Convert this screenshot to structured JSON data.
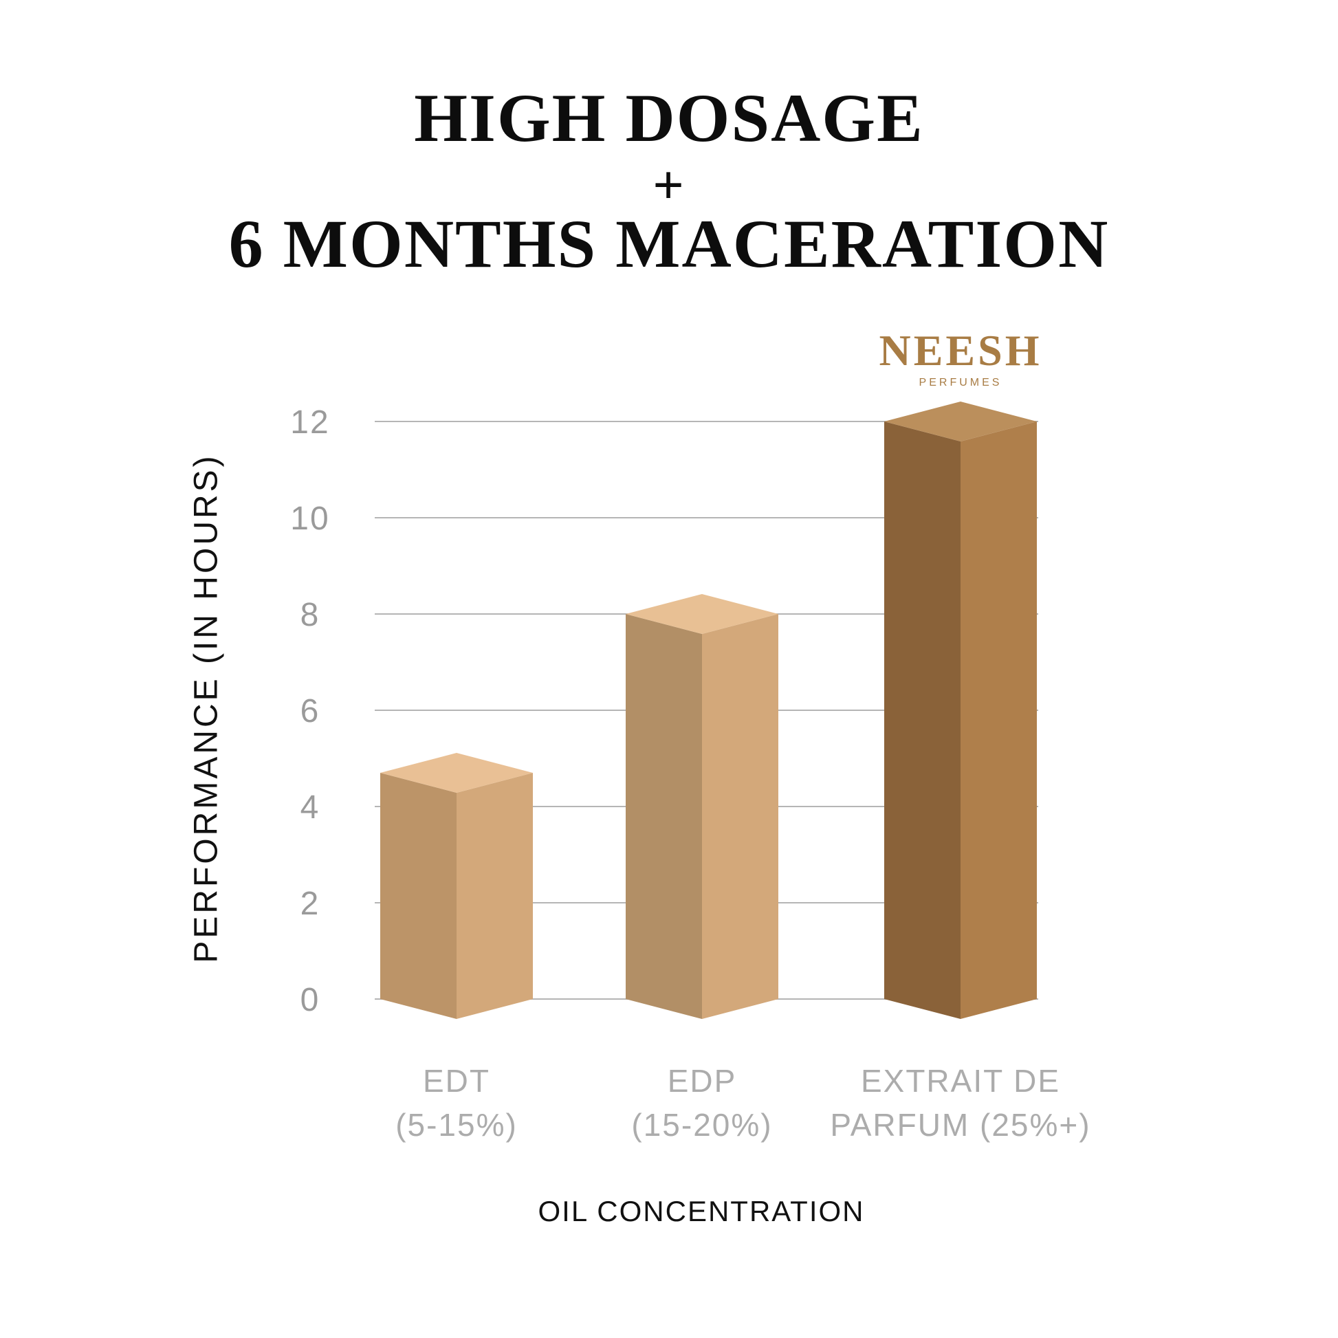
{
  "title": {
    "line1": "HIGH DOSAGE",
    "plus": "+",
    "line2": "6 MONTHS MACERATION"
  },
  "logo": {
    "name": "NEESH",
    "subtitle": "PERFUMES",
    "color": "#A87C44"
  },
  "axes": {
    "y_label": "PERFORMANCE (IN HOURS)",
    "x_label": "OIL CONCENTRATION"
  },
  "bars": [
    {
      "label_line1": "EDT",
      "label_line2": "(5-15%)",
      "value": 4.7,
      "colors": {
        "top": "#E9C095",
        "left": "#BC9468",
        "right": "#D3A87A"
      }
    },
    {
      "label_line1": "EDP",
      "label_line2": "(15-20%)",
      "value": 8,
      "colors": {
        "top": "#E8C094",
        "left": "#B28F66",
        "right": "#D3A87A"
      }
    },
    {
      "label_line1": "EXTRAIT DE",
      "label_line2": "PARFUM (25%+)",
      "value": 12,
      "colors": {
        "top": "#BB8F5C",
        "left": "#8A6239",
        "right": "#AF7F4B"
      }
    }
  ],
  "chart_data": {
    "type": "bar",
    "style": "3d-corner-view",
    "title": "HIGH DOSAGE + 6 MONTHS MACERATION",
    "categories": [
      "EDT (5-15%)",
      "EDP (15-20%)",
      "EXTRAIT DE PARFUM (25%+)"
    ],
    "values": [
      4.7,
      8,
      12
    ],
    "xlabel": "OIL CONCENTRATION",
    "ylabel": "PERFORMANCE (IN HOURS)",
    "ylim": [
      0,
      12
    ],
    "yticks": [
      0,
      2,
      4,
      6,
      8,
      10,
      12
    ],
    "grid": "horizontal",
    "legend": false,
    "colors": {
      "grid": "#B5B5B5",
      "tick_labels": "#9A9A9A",
      "category_labels": "#ACACAC",
      "axis_titles": "#111111"
    }
  }
}
